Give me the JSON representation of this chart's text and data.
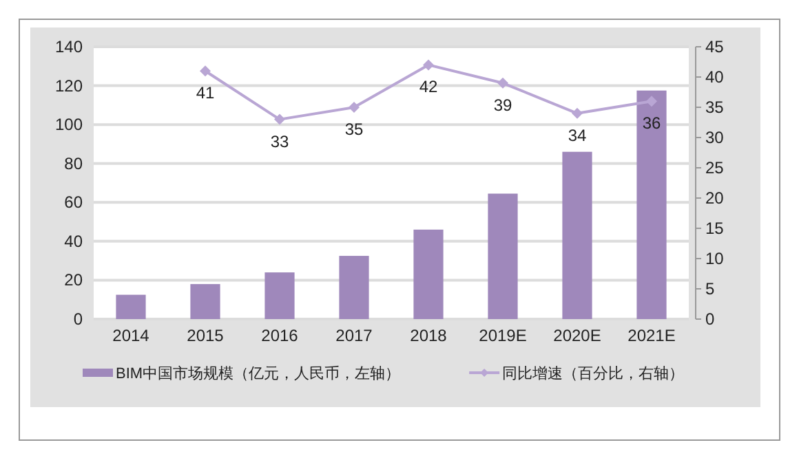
{
  "chart_data": {
    "type": "bar",
    "categories": [
      "2014",
      "2015",
      "2016",
      "2017",
      "2018",
      "2019E",
      "2020E",
      "2021E"
    ],
    "series": [
      {
        "name": "BIM中国市场规模（亿元，人民币，左轴）",
        "color": "#9f88bb",
        "values": [
          12.5,
          18,
          24,
          32.5,
          46,
          64.5,
          86,
          117.5
        ]
      },
      {
        "name": "同比增速（百分比，右轴）",
        "type": "line",
        "axis": "y2",
        "color": "#b9a6d4",
        "marker": "diamond",
        "values": [
          null,
          41,
          33,
          35,
          42,
          39,
          34,
          36
        ],
        "value_labels": [
          null,
          "41",
          "33",
          "35",
          "42",
          "39",
          "34",
          "36"
        ]
      }
    ],
    "ylim": [
      0,
      140
    ],
    "yticks": [
      0,
      20,
      40,
      60,
      80,
      100,
      120,
      140
    ],
    "y2lim": [
      0,
      45
    ],
    "y2ticks": [
      0,
      5,
      10,
      15,
      20,
      25,
      30,
      35,
      40,
      45
    ],
    "grid": "y",
    "legend": "bottom"
  }
}
